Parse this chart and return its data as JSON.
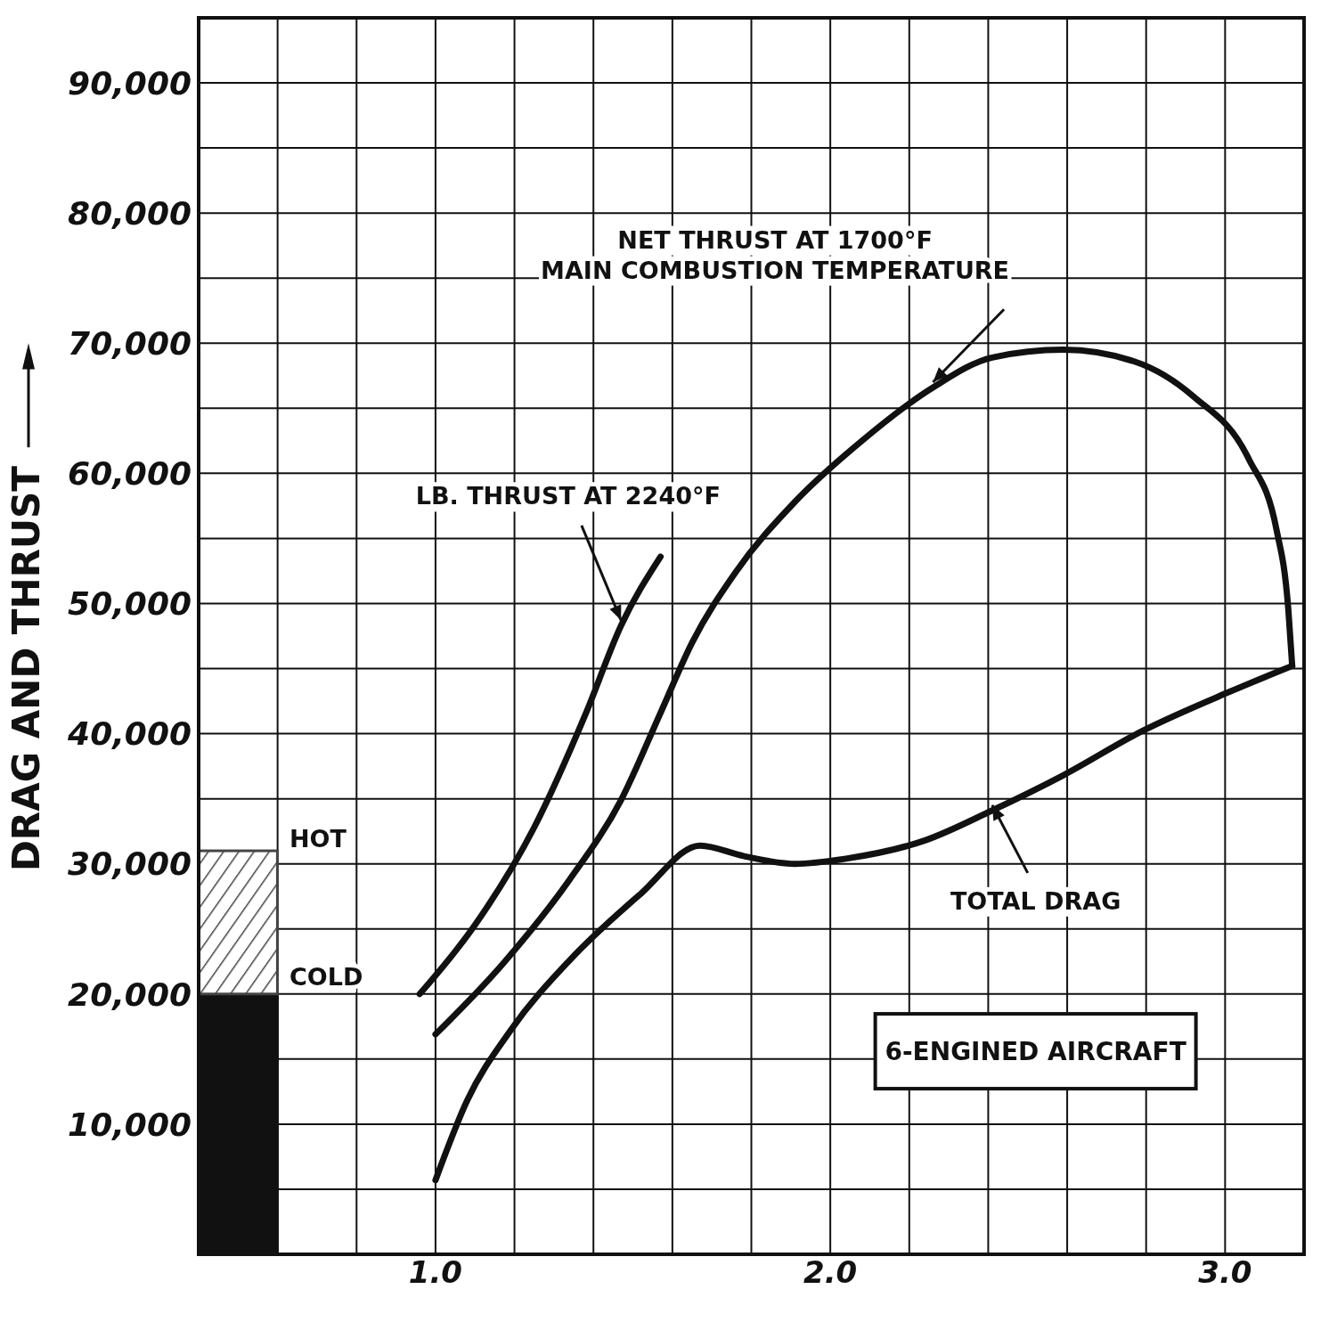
{
  "chart_data": {
    "type": "line",
    "ylabel": "DRAG AND THRUST",
    "xlim": [
      0.4,
      3.2
    ],
    "ylim": [
      0,
      95000
    ],
    "xticks": [
      {
        "value": 0.4,
        "label": null
      },
      {
        "value": 0.6,
        "label": null
      },
      {
        "value": 0.8,
        "label": null
      },
      {
        "value": 1,
        "label": "1.0"
      },
      {
        "value": 1.2,
        "label": null
      },
      {
        "value": 1.4,
        "label": null
      },
      {
        "value": 1.6,
        "label": null
      },
      {
        "value": 1.8,
        "label": null
      },
      {
        "value": 2,
        "label": "2.0"
      },
      {
        "value": 2.2,
        "label": null
      },
      {
        "value": 2.4,
        "label": null
      },
      {
        "value": 2.6,
        "label": null
      },
      {
        "value": 2.8,
        "label": null
      },
      {
        "value": 3,
        "label": "3.0"
      },
      {
        "value": 3.2,
        "label": null
      }
    ],
    "yticks": [
      {
        "value": 0,
        "label": null
      },
      {
        "value": 5000,
        "label": null
      },
      {
        "value": 10000,
        "label": "10,000"
      },
      {
        "value": 15000,
        "label": null
      },
      {
        "value": 20000,
        "label": "20,000"
      },
      {
        "value": 25000,
        "label": null
      },
      {
        "value": 30000,
        "label": "30,000"
      },
      {
        "value": 35000,
        "label": null
      },
      {
        "value": 40000,
        "label": "40,000"
      },
      {
        "value": 45000,
        "label": null
      },
      {
        "value": 50000,
        "label": "50,000"
      },
      {
        "value": 55000,
        "label": null
      },
      {
        "value": 60000,
        "label": "60,000"
      },
      {
        "value": 65000,
        "label": null
      },
      {
        "value": 70000,
        "label": "70,000"
      },
      {
        "value": 75000,
        "label": null
      },
      {
        "value": 80000,
        "label": "80,000"
      },
      {
        "value": 85000,
        "label": null
      },
      {
        "value": 90000,
        "label": "90,000"
      },
      {
        "value": 95000,
        "label": null
      }
    ],
    "grid": true,
    "stacked": true,
    "marker": "none",
    "line_style": "solid",
    "series": [
      {
        "name": "COLD",
        "type": "bar",
        "x": [
          0.5
        ],
        "values": [
          20000
        ],
        "color": "#111111"
      },
      {
        "name": "HOT",
        "type": "bar",
        "x": [
          0.5
        ],
        "values": [
          11000
        ],
        "color": "#444444"
      },
      {
        "name": "LB. THRUST AT 2240°F",
        "type": "line",
        "x": [
          0.96,
          1.1,
          1.25,
          1.38,
          1.47,
          1.57
        ],
        "values": [
          20000,
          25300,
          32800,
          41500,
          48300,
          53600
        ],
        "color": "#111111"
      },
      {
        "name": "NET THRUST AT 1700°F\nMAIN COMBUSTION TEMPERATURE",
        "type": "line",
        "x": [
          1.0,
          1.17,
          1.34,
          1.47,
          1.57,
          1.65,
          1.76,
          1.91,
          2.08,
          2.26,
          2.41,
          2.59,
          2.77,
          2.92,
          3.06,
          3.13,
          3.16,
          3.17
        ],
        "values": [
          16900,
          22300,
          28800,
          34900,
          41600,
          47000,
          52400,
          57800,
          62500,
          66600,
          68900,
          69500,
          68600,
          65900,
          61100,
          55700,
          49600,
          45200
        ],
        "color": "#111111"
      },
      {
        "name": "TOTAL DRAG",
        "type": "line",
        "x": [
          1.0,
          1.08,
          1.19,
          1.34,
          1.52,
          1.67,
          1.78,
          1.91,
          2.04,
          2.24,
          2.41,
          2.59,
          2.79,
          3.01,
          3.17
        ],
        "values": [
          5700,
          11800,
          17200,
          22600,
          27700,
          31400,
          30600,
          30000,
          30400,
          31800,
          34100,
          36800,
          40200,
          43200,
          45200
        ],
        "color": "#111111"
      }
    ],
    "annotations": [
      "6-ENGINED AIRCRAFT"
    ]
  }
}
